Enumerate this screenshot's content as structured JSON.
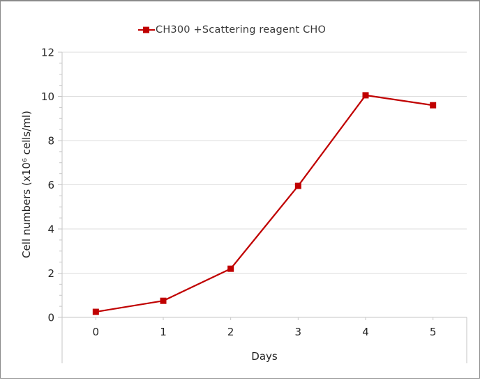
{
  "window": {
    "background": "#ffffff",
    "border_color": "#8a8a8a"
  },
  "legend": {
    "position": "top-center",
    "marker": "red-square-with-line"
  },
  "chart_data": {
    "type": "line",
    "title": "",
    "x": [
      0,
      1,
      2,
      3,
      4,
      5
    ],
    "xtick_labels": [
      "0",
      "1",
      "2",
      "3",
      "4",
      "5"
    ],
    "series": [
      {
        "name": "CH300 +Scattering reagent CHO",
        "color": "#c00000",
        "values": [
          0.25,
          0.75,
          2.2,
          5.95,
          10.05,
          9.6
        ]
      }
    ],
    "xlabel": "Days",
    "ylabel": "Cell numbers (x10⁶ cells/ml)",
    "yticks": [
      0,
      2,
      4,
      6,
      8,
      10,
      12
    ],
    "ylim": [
      0,
      12
    ],
    "y_minor_step": 0.5,
    "grid": "horizontal-major",
    "legend_position": "top",
    "colors": {
      "gridline": "#dedede",
      "axis": "#c6c6c6",
      "tick_label": "#262626",
      "legend_text": "#3a3a3a"
    }
  }
}
